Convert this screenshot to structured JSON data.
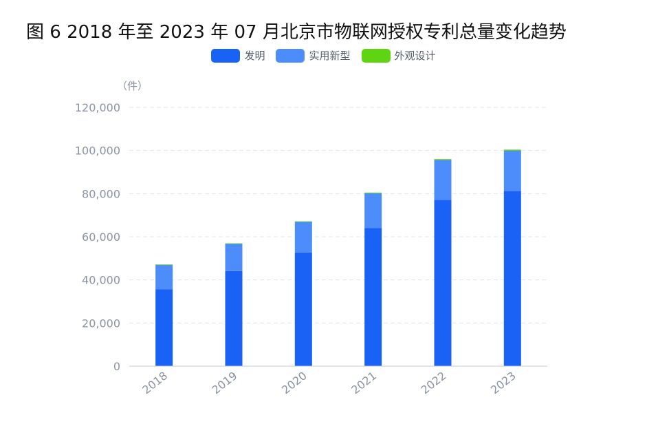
{
  "title": "图 6 2018 年至 2023 年 07 月北京市物联网授权专利总量变化趋势",
  "chart_data": {
    "type": "bar",
    "stacked": true,
    "categories": [
      "2018",
      "2019",
      "2020",
      "2021",
      "2022",
      "2023"
    ],
    "series": [
      {
        "name": "发明",
        "color": "#1a62f5",
        "values": [
          35700,
          44100,
          52700,
          64000,
          77100,
          81200
        ]
      },
      {
        "name": "实用新型",
        "color": "#4d8dfb",
        "values": [
          11300,
          12700,
          14300,
          16200,
          18500,
          18700
        ]
      },
      {
        "name": "外观设计",
        "color": "#5fd412",
        "values": [
          150,
          150,
          150,
          300,
          400,
          500
        ]
      }
    ],
    "ylim": [
      0,
      120000
    ],
    "yticks": [
      "0",
      "20,000",
      "40,000",
      "60,000",
      "80,000",
      "100,000",
      "120,000"
    ],
    "ytick_values": [
      0,
      20000,
      40000,
      60000,
      80000,
      100000,
      120000
    ],
    "y_unit": "（件）",
    "grid": true,
    "legend_position": "top-center"
  }
}
